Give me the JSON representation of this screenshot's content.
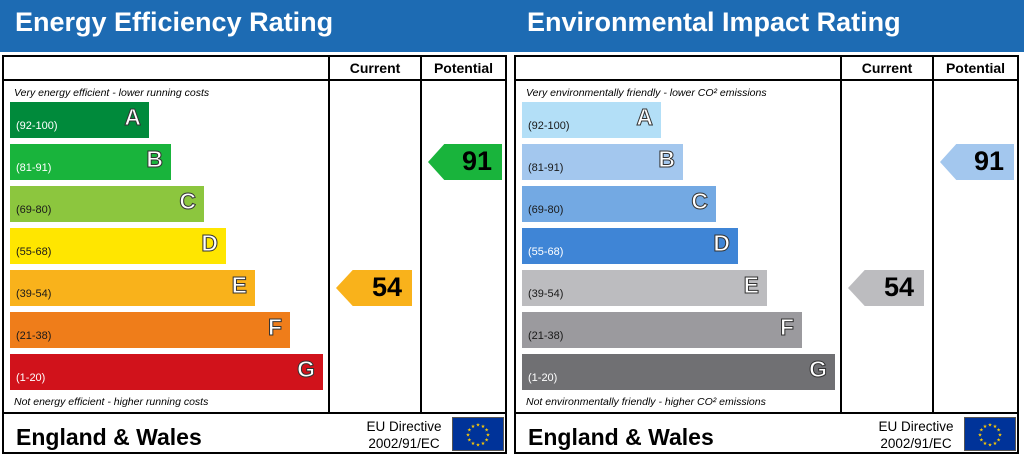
{
  "chart_data": [
    {
      "type": "bar",
      "title": "Energy Efficiency Rating",
      "column_headers": {
        "current": "Current",
        "potential": "Potential"
      },
      "caption_top": "Very energy efficient - lower running costs",
      "caption_bottom": "Not energy efficient - higher running costs",
      "bands": [
        {
          "letter": "A",
          "range": "(92-100)",
          "color": "#008a3b"
        },
        {
          "letter": "B",
          "range": "(81-91)",
          "color": "#19b43c"
        },
        {
          "letter": "C",
          "range": "(69-80)",
          "color": "#8cc63e"
        },
        {
          "letter": "D",
          "range": "(55-68)",
          "color": "#ffe600"
        },
        {
          "letter": "E",
          "range": "(39-54)",
          "color": "#f9b21b"
        },
        {
          "letter": "F",
          "range": "(21-38)",
          "color": "#ef7d1a"
        },
        {
          "letter": "G",
          "range": "(1-20)",
          "color": "#d1121b"
        }
      ],
      "current": {
        "value": 54,
        "band": "E",
        "color": "#f9b21b"
      },
      "potential": {
        "value": 91,
        "band": "B",
        "color": "#19b43c"
      },
      "footer": {
        "region": "England & Wales",
        "directive_line1": "EU Directive",
        "directive_line2": "2002/91/EC"
      }
    },
    {
      "type": "bar",
      "title": "Environmental Impact Rating",
      "column_headers": {
        "current": "Current",
        "potential": "Potential"
      },
      "caption_top": "Very environmentally friendly - lower CO² emissions",
      "caption_bottom": "Not environmentally friendly - higher CO² emissions",
      "bands": [
        {
          "letter": "A",
          "range": "(92-100)",
          "color": "#b3dff7"
        },
        {
          "letter": "B",
          "range": "(81-91)",
          "color": "#a3c7ee"
        },
        {
          "letter": "C",
          "range": "(69-80)",
          "color": "#73a9e3"
        },
        {
          "letter": "D",
          "range": "(55-68)",
          "color": "#3f85d6"
        },
        {
          "letter": "E",
          "range": "(39-54)",
          "color": "#bcbcbf"
        },
        {
          "letter": "F",
          "range": "(21-38)",
          "color": "#9b9a9e"
        },
        {
          "letter": "G",
          "range": "(1-20)",
          "color": "#707073"
        }
      ],
      "current": {
        "value": 54,
        "band": "E",
        "color": "#bcbcbf"
      },
      "potential": {
        "value": 91,
        "band": "B",
        "color": "#a3c7ee"
      },
      "footer": {
        "region": "England & Wales",
        "directive_line1": "EU Directive",
        "directive_line2": "2002/91/EC"
      }
    }
  ]
}
